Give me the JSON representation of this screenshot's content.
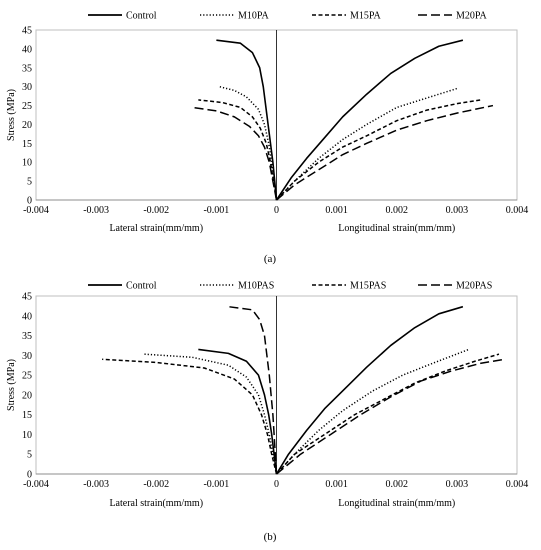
{
  "chart_data": [
    {
      "id": "a",
      "type": "line",
      "caption": "(a)",
      "ylabel": "Stress (MPa)",
      "xlabel_lateral": "Lateral strain(mm/mm)",
      "xlabel_longitudinal": "Longitudinal strain(mm/mm)",
      "xlim": [
        -0.004,
        0.004
      ],
      "ylim": [
        0,
        45
      ],
      "xticks": [
        "-0.004",
        "-0.003",
        "-0.002",
        "-0.001",
        "0",
        "0.001",
        "0.002",
        "0.003",
        "0.004"
      ],
      "yticks": [
        "0",
        "5",
        "10",
        "15",
        "20",
        "25",
        "30",
        "35",
        "40",
        "45"
      ],
      "grid": false,
      "legend_position": "top",
      "series": [
        {
          "name": "Control",
          "dash": "solid",
          "lateral": [
            [
              0,
              0
            ],
            [
              -3e-05,
              5
            ],
            [
              -6e-05,
              10
            ],
            [
              -0.0001,
              15
            ],
            [
              -0.00014,
              20
            ],
            [
              -0.00018,
              25
            ],
            [
              -0.00022,
              30
            ],
            [
              -0.00028,
              35
            ],
            [
              -0.0004,
              39
            ],
            [
              -0.0006,
              41.5
            ],
            [
              -0.001,
              42.3
            ]
          ],
          "longitudinal": [
            [
              0,
              0
            ],
            [
              0.00025,
              6
            ],
            [
              0.0005,
              11
            ],
            [
              0.0008,
              16.5
            ],
            [
              0.0011,
              22
            ],
            [
              0.0015,
              28
            ],
            [
              0.0019,
              33.5
            ],
            [
              0.0023,
              37.5
            ],
            [
              0.0027,
              40.7
            ],
            [
              0.0031,
              42.3
            ]
          ]
        },
        {
          "name": "M10PA",
          "dash": "dotted",
          "lateral": [
            [
              0,
              0
            ],
            [
              -4e-05,
              5
            ],
            [
              -8e-05,
              10
            ],
            [
              -0.00013,
              15
            ],
            [
              -0.0002,
              20
            ],
            [
              -0.0003,
              24
            ],
            [
              -0.0005,
              27.3
            ],
            [
              -0.0007,
              29
            ],
            [
              -0.00095,
              30
            ]
          ],
          "longitudinal": [
            [
              0,
              0
            ],
            [
              0.0003,
              5
            ],
            [
              0.0007,
              11
            ],
            [
              0.0011,
              16
            ],
            [
              0.0015,
              20
            ],
            [
              0.002,
              24.5
            ],
            [
              0.0025,
              27
            ],
            [
              0.003,
              29.5
            ]
          ]
        },
        {
          "name": "M15PA",
          "dash": "dashed",
          "lateral": [
            [
              0,
              0
            ],
            [
              -5e-05,
              5
            ],
            [
              -0.0001,
              10
            ],
            [
              -0.00017,
              15
            ],
            [
              -0.00027,
              19
            ],
            [
              -0.0004,
              22
            ],
            [
              -0.0006,
              24.5
            ],
            [
              -0.0009,
              25.8
            ],
            [
              -0.0013,
              26.5
            ]
          ],
          "longitudinal": [
            [
              0,
              0
            ],
            [
              0.0003,
              5
            ],
            [
              0.0007,
              10
            ],
            [
              0.0011,
              14
            ],
            [
              0.0015,
              17
            ],
            [
              0.002,
              21
            ],
            [
              0.0025,
              23.8
            ],
            [
              0.003,
              25.5
            ],
            [
              0.0034,
              26.5
            ]
          ]
        },
        {
          "name": "M20PA",
          "dash": "longdash",
          "lateral": [
            [
              0,
              0
            ],
            [
              -6e-05,
              5
            ],
            [
              -0.00012,
              10
            ],
            [
              -0.0002,
              14
            ],
            [
              -0.0003,
              17
            ],
            [
              -0.00045,
              19.5
            ],
            [
              -0.0007,
              22
            ],
            [
              -0.001,
              23.6
            ],
            [
              -0.0014,
              24.5
            ]
          ],
          "longitudinal": [
            [
              0,
              0
            ],
            [
              0.0003,
              4
            ],
            [
              0.0007,
              8
            ],
            [
              0.0011,
              12
            ],
            [
              0.0015,
              15
            ],
            [
              0.002,
              18.5
            ],
            [
              0.0025,
              21
            ],
            [
              0.003,
              23
            ],
            [
              0.0036,
              25
            ]
          ]
        }
      ]
    },
    {
      "id": "b",
      "type": "line",
      "caption": "(b)",
      "ylabel": "Stress (MPa)",
      "xlabel_lateral": "Lateral strain(mm/mm)",
      "xlabel_longitudinal": "Longitudinal strain(mm/mm)",
      "xlim": [
        -0.004,
        0.004
      ],
      "ylim": [
        0,
        45
      ],
      "xticks": [
        "-0.004",
        "-0.003",
        "-0.002",
        "-0.001",
        "0",
        "0.001",
        "0.002",
        "0.003",
        "0.004"
      ],
      "yticks": [
        "0",
        "5",
        "10",
        "15",
        "20",
        "25",
        "30",
        "35",
        "40",
        "45"
      ],
      "grid": false,
      "legend_position": "top",
      "series": [
        {
          "name": "Control",
          "dash": "solid",
          "lateral": [
            [
              0,
              0
            ],
            [
              -4e-05,
              5
            ],
            [
              -8e-05,
              10
            ],
            [
              -0.00013,
              15
            ],
            [
              -0.0002,
              20
            ],
            [
              -0.0003,
              25
            ],
            [
              -0.0005,
              28.5
            ],
            [
              -0.0008,
              30.5
            ],
            [
              -0.0013,
              31.5
            ]
          ],
          "longitudinal": [
            [
              0,
              0
            ],
            [
              0.0002,
              5
            ],
            [
              0.0005,
              11
            ],
            [
              0.0008,
              16.5
            ],
            [
              0.0011,
              21
            ],
            [
              0.0015,
              27
            ],
            [
              0.0019,
              32.5
            ],
            [
              0.0023,
              37
            ],
            [
              0.0027,
              40.5
            ],
            [
              0.0031,
              42.3
            ]
          ]
        },
        {
          "name": "M10PAS",
          "dash": "dotted",
          "lateral": [
            [
              0,
              0
            ],
            [
              -6e-05,
              5
            ],
            [
              -0.00012,
              10
            ],
            [
              -0.0002,
              15
            ],
            [
              -0.0003,
              20
            ],
            [
              -0.0005,
              24.5
            ],
            [
              -0.0008,
              27.5
            ],
            [
              -0.0014,
              29.5
            ],
            [
              -0.0022,
              30.3
            ]
          ],
          "longitudinal": [
            [
              0,
              0
            ],
            [
              0.0003,
              5
            ],
            [
              0.0007,
              11
            ],
            [
              0.0011,
              16
            ],
            [
              0.0016,
              21
            ],
            [
              0.0021,
              25
            ],
            [
              0.0026,
              28
            ],
            [
              0.0032,
              31.5
            ]
          ]
        },
        {
          "name": "M15PAS",
          "dash": "dashed",
          "lateral": [
            [
              0,
              0
            ],
            [
              -8e-05,
              5
            ],
            [
              -0.00015,
              10
            ],
            [
              -0.00025,
              15
            ],
            [
              -0.0004,
              20
            ],
            [
              -0.0007,
              24
            ],
            [
              -0.0012,
              26.8
            ],
            [
              -0.002,
              28.2
            ],
            [
              -0.0029,
              29
            ]
          ],
          "longitudinal": [
            [
              0,
              0
            ],
            [
              0.0003,
              5
            ],
            [
              0.0008,
              10
            ],
            [
              0.0013,
              15
            ],
            [
              0.0018,
              19
            ],
            [
              0.0023,
              23
            ],
            [
              0.0028,
              26
            ],
            [
              0.0033,
              28.5
            ],
            [
              0.0037,
              30.3
            ]
          ]
        },
        {
          "name": "M20PAS",
          "dash": "longdash",
          "lateral": [
            [
              0,
              0
            ],
            [
              -2e-05,
              5
            ],
            [
              -4e-05,
              10
            ],
            [
              -6e-05,
              15
            ],
            [
              -9e-05,
              20
            ],
            [
              -0.00012,
              25
            ],
            [
              -0.00016,
              30
            ],
            [
              -0.0002,
              35
            ],
            [
              -0.00028,
              39
            ],
            [
              -0.0004,
              41.5
            ],
            [
              -0.0008,
              42.3
            ]
          ],
          "longitudinal": [
            [
              0,
              0
            ],
            [
              0.0004,
              5
            ],
            [
              0.0009,
              10
            ],
            [
              0.0014,
              15
            ],
            [
              0.0019,
              19.5
            ],
            [
              0.0024,
              23.5
            ],
            [
              0.0029,
              26
            ],
            [
              0.0034,
              28
            ],
            [
              0.0038,
              29
            ]
          ]
        }
      ]
    }
  ]
}
